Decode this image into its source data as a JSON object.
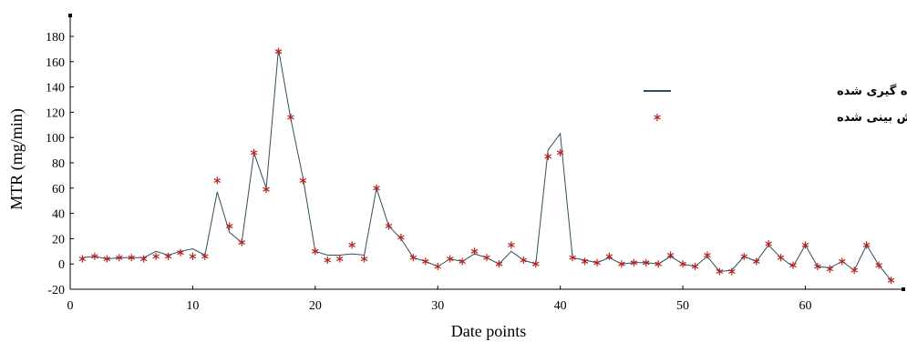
{
  "chart_data": {
    "type": "line",
    "title": "",
    "xlabel": "Date points",
    "ylabel": "MTR (mg/min)",
    "xlim": [
      0,
      68
    ],
    "ylim": [
      -20,
      180
    ],
    "xticks": [
      0,
      10,
      20,
      30,
      40,
      50,
      60
    ],
    "yticks": [
      -20,
      0,
      20,
      40,
      60,
      80,
      100,
      120,
      140,
      160,
      180
    ],
    "grid": false,
    "legend_position": "top-right",
    "x": [
      1,
      2,
      3,
      4,
      5,
      6,
      7,
      8,
      9,
      10,
      11,
      12,
      13,
      14,
      15,
      16,
      17,
      18,
      19,
      20,
      21,
      22,
      23,
      24,
      25,
      26,
      27,
      28,
      29,
      30,
      31,
      32,
      33,
      34,
      35,
      36,
      37,
      38,
      39,
      40,
      41,
      42,
      43,
      44,
      45,
      46,
      47,
      48,
      49,
      50,
      51,
      52,
      53,
      54,
      55,
      56,
      57,
      58,
      59,
      60,
      61,
      62,
      63,
      64,
      65,
      66,
      67
    ],
    "series": [
      {
        "name": "مقدار اندازه گیری شده",
        "style": "line",
        "color": "#2f4f5e",
        "values": [
          5,
          6,
          4,
          5,
          5,
          5,
          10,
          7,
          10,
          12,
          7,
          57,
          25,
          17,
          88,
          60,
          170,
          115,
          68,
          10,
          7,
          7,
          8,
          7,
          60,
          30,
          20,
          5,
          2,
          -2,
          4,
          2,
          8,
          5,
          0,
          10,
          3,
          0,
          90,
          103,
          5,
          3,
          1,
          5,
          0,
          1,
          1,
          0,
          6,
          0,
          -2,
          6,
          -6,
          -5,
          6,
          2,
          15,
          5,
          -2,
          15,
          -2,
          -3,
          2,
          -5,
          15,
          -1,
          -13
        ]
      },
      {
        "name": "مقدار پیش بینی شده",
        "style": "marker",
        "color": "#b22222",
        "values": [
          4,
          6,
          4,
          5,
          5,
          4,
          6,
          6,
          9,
          6,
          6,
          66,
          30,
          17,
          88,
          59,
          168,
          116,
          66,
          10,
          3,
          4,
          15,
          4,
          60,
          30,
          21,
          5,
          2,
          -2,
          4,
          2,
          10,
          5,
          0,
          15,
          3,
          0,
          85,
          88,
          5,
          2,
          1,
          6,
          0,
          1,
          1,
          0,
          7,
          0,
          -2,
          7,
          -6,
          -6,
          6,
          2,
          16,
          5,
          -1,
          15,
          -2,
          -4,
          2,
          -5,
          15,
          -1,
          -13
        ]
      }
    ]
  }
}
